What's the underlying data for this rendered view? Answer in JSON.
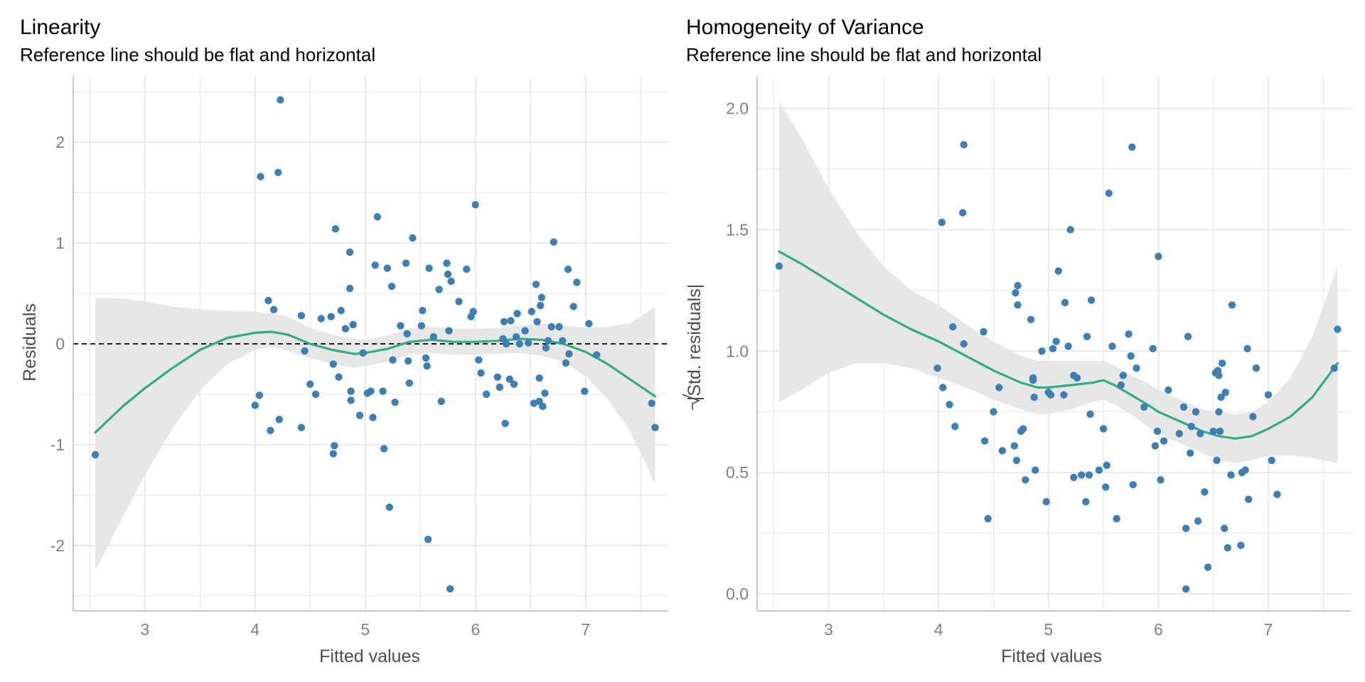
{
  "colors": {
    "points": "#3a7fb7",
    "smooth": "#2fae7f",
    "band": "#e6e6e6",
    "grid": "#e4e4e4",
    "reference": "#000000"
  },
  "chart_data": [
    {
      "type": "scatter",
      "title": "Linearity",
      "subtitle": "Reference line should be flat and horizontal",
      "xlabel": "Fitted values",
      "ylabel": "Residuals",
      "xlim": [
        2.35,
        7.75
      ],
      "ylim": [
        -2.65,
        2.65
      ],
      "xticks": [
        3,
        4,
        5,
        6,
        7
      ],
      "xtick_labels": [
        "3",
        "4",
        "5",
        "6",
        "7"
      ],
      "yticks": [
        -2,
        -1,
        0,
        1,
        2
      ],
      "ytick_labels": [
        "-2",
        "-1",
        "0",
        "1",
        "2"
      ],
      "grid": true,
      "reference_line": 0,
      "points": [
        [
          2.55,
          -1.1
        ],
        [
          4.0,
          -0.61
        ],
        [
          4.04,
          -0.51
        ],
        [
          4.05,
          1.66
        ],
        [
          4.12,
          0.43
        ],
        [
          4.14,
          -0.86
        ],
        [
          4.17,
          0.34
        ],
        [
          4.21,
          1.7
        ],
        [
          4.22,
          -0.75
        ],
        [
          4.23,
          2.42
        ],
        [
          4.42,
          0.28
        ],
        [
          4.42,
          -0.83
        ],
        [
          4.45,
          -0.07
        ],
        [
          4.5,
          -0.4
        ],
        [
          4.55,
          -0.5
        ],
        [
          4.6,
          0.25
        ],
        [
          4.69,
          0.27
        ],
        [
          4.71,
          -0.2
        ],
        [
          4.71,
          -1.09
        ],
        [
          4.72,
          -1.01
        ],
        [
          4.73,
          1.14
        ],
        [
          4.76,
          -0.33
        ],
        [
          4.78,
          0.33
        ],
        [
          4.82,
          0.15
        ],
        [
          4.86,
          0.55
        ],
        [
          4.86,
          0.91
        ],
        [
          4.87,
          -0.47
        ],
        [
          4.87,
          -0.56
        ],
        [
          4.89,
          0.19
        ],
        [
          4.95,
          -0.71
        ],
        [
          4.98,
          -0.09
        ],
        [
          5.02,
          -0.49
        ],
        [
          5.05,
          -0.47
        ],
        [
          5.07,
          -0.73
        ],
        [
          5.09,
          0.78
        ],
        [
          5.11,
          1.26
        ],
        [
          5.16,
          -0.47
        ],
        [
          5.17,
          -1.04
        ],
        [
          5.2,
          0.75
        ],
        [
          5.22,
          -1.62
        ],
        [
          5.24,
          0.57
        ],
        [
          5.25,
          -0.16
        ],
        [
          5.27,
          -0.58
        ],
        [
          5.32,
          0.18
        ],
        [
          5.37,
          0.8
        ],
        [
          5.38,
          0.1
        ],
        [
          5.39,
          -0.17
        ],
        [
          5.4,
          -0.39
        ],
        [
          5.43,
          1.05
        ],
        [
          5.51,
          0.18
        ],
        [
          5.52,
          0.33
        ],
        [
          5.55,
          -0.14
        ],
        [
          5.56,
          -0.22
        ],
        [
          5.57,
          -1.94
        ],
        [
          5.58,
          0.75
        ],
        [
          5.62,
          0.07
        ],
        [
          5.67,
          0.54
        ],
        [
          5.69,
          -0.57
        ],
        [
          5.74,
          0.8
        ],
        [
          5.75,
          0.69
        ],
        [
          5.76,
          0.13
        ],
        [
          5.77,
          -2.43
        ],
        [
          5.78,
          0.62
        ],
        [
          5.85,
          0.42
        ],
        [
          5.92,
          0.74
        ],
        [
          5.96,
          0.27
        ],
        [
          5.98,
          0.32
        ],
        [
          6.0,
          1.38
        ],
        [
          6.03,
          -0.16
        ],
        [
          6.05,
          -0.29
        ],
        [
          6.1,
          -0.5
        ],
        [
          6.2,
          -0.33
        ],
        [
          6.22,
          -0.43
        ],
        [
          6.25,
          0.05
        ],
        [
          6.26,
          0.22
        ],
        [
          6.27,
          -0.79
        ],
        [
          6.28,
          0.0
        ],
        [
          6.31,
          -0.35
        ],
        [
          6.32,
          0.23
        ],
        [
          6.35,
          -0.4
        ],
        [
          6.37,
          0.07
        ],
        [
          6.38,
          0.3
        ],
        [
          6.4,
          0.0
        ],
        [
          6.45,
          0.13
        ],
        [
          6.48,
          0.01
        ],
        [
          6.51,
          0.32
        ],
        [
          6.53,
          -0.59
        ],
        [
          6.55,
          0.59
        ],
        [
          6.56,
          0.22
        ],
        [
          6.58,
          -0.34
        ],
        [
          6.58,
          -0.57
        ],
        [
          6.59,
          0.38
        ],
        [
          6.6,
          0.46
        ],
        [
          6.61,
          -0.62
        ],
        [
          6.63,
          -0.49
        ],
        [
          6.64,
          -0.04
        ],
        [
          6.66,
          0.03
        ],
        [
          6.69,
          0.17
        ],
        [
          6.71,
          1.01
        ],
        [
          6.76,
          0.17
        ],
        [
          6.79,
          0.03
        ],
        [
          6.82,
          -0.19
        ],
        [
          6.84,
          0.74
        ],
        [
          6.85,
          -0.1
        ],
        [
          6.89,
          0.37
        ],
        [
          6.92,
          0.61
        ],
        [
          6.99,
          -0.47
        ],
        [
          7.03,
          0.2
        ],
        [
          7.1,
          -0.11
        ],
        [
          7.6,
          -0.59
        ],
        [
          7.63,
          -0.83
        ]
      ],
      "smooth": {
        "x": [
          2.55,
          2.8,
          3.0,
          3.25,
          3.5,
          3.75,
          4.0,
          4.15,
          4.3,
          4.5,
          4.7,
          4.9,
          5.0,
          5.2,
          5.4,
          5.6,
          5.8,
          6.0,
          6.2,
          6.4,
          6.6,
          6.8,
          7.0,
          7.2,
          7.4,
          7.63
        ],
        "y": [
          -0.88,
          -0.62,
          -0.44,
          -0.24,
          -0.06,
          0.06,
          0.11,
          0.12,
          0.09,
          0.0,
          -0.06,
          -0.1,
          -0.09,
          -0.05,
          0.02,
          0.04,
          0.02,
          0.02,
          0.03,
          0.05,
          0.04,
          0.0,
          -0.08,
          -0.2,
          -0.35,
          -0.52
        ],
        "lower": [
          -2.25,
          -1.72,
          -1.3,
          -0.84,
          -0.46,
          -0.2,
          -0.06,
          -0.03,
          -0.07,
          -0.14,
          -0.2,
          -0.24,
          -0.22,
          -0.18,
          -0.11,
          -0.09,
          -0.11,
          -0.11,
          -0.1,
          -0.09,
          -0.12,
          -0.18,
          -0.32,
          -0.55,
          -0.86,
          -1.39
        ],
        "upper": [
          0.46,
          0.45,
          0.42,
          0.37,
          0.34,
          0.33,
          0.32,
          0.3,
          0.27,
          0.16,
          0.09,
          0.05,
          0.04,
          0.08,
          0.15,
          0.17,
          0.15,
          0.15,
          0.16,
          0.18,
          0.2,
          0.18,
          0.16,
          0.17,
          0.2,
          0.37
        ]
      }
    },
    {
      "type": "scatter",
      "title": "Homogeneity of Variance",
      "subtitle": "Reference line should be flat and horizontal",
      "xlabel": "Fitted values",
      "ylabel": "Std. residuals",
      "xlim": [
        2.35,
        7.75
      ],
      "ylim": [
        -0.07,
        2.13
      ],
      "xticks": [
        3,
        4,
        5,
        6,
        7
      ],
      "xtick_labels": [
        "3",
        "4",
        "5",
        "6",
        "7"
      ],
      "yticks": [
        0,
        0.5,
        1,
        1.5,
        2
      ],
      "ytick_labels": [
        "0.0",
        "0.5",
        "1.0",
        "1.5",
        "2.0"
      ],
      "grid": true,
      "points": [
        [
          2.55,
          1.35
        ],
        [
          3.99,
          0.93
        ],
        [
          4.03,
          1.53
        ],
        [
          4.04,
          0.85
        ],
        [
          4.1,
          0.78
        ],
        [
          4.13,
          1.1
        ],
        [
          4.15,
          0.69
        ],
        [
          4.22,
          1.57
        ],
        [
          4.23,
          1.85
        ],
        [
          4.23,
          1.03
        ],
        [
          4.41,
          1.08
        ],
        [
          4.42,
          0.63
        ],
        [
          4.45,
          0.31
        ],
        [
          4.5,
          0.75
        ],
        [
          4.55,
          0.85
        ],
        [
          4.58,
          0.59
        ],
        [
          4.69,
          0.61
        ],
        [
          4.7,
          1.24
        ],
        [
          4.71,
          0.55
        ],
        [
          4.72,
          1.19
        ],
        [
          4.72,
          1.27
        ],
        [
          4.75,
          0.67
        ],
        [
          4.77,
          0.68
        ],
        [
          4.79,
          0.47
        ],
        [
          4.84,
          1.13
        ],
        [
          4.86,
          0.88
        ],
        [
          4.86,
          0.89
        ],
        [
          4.87,
          0.81
        ],
        [
          4.88,
          0.51
        ],
        [
          4.94,
          1.0
        ],
        [
          4.98,
          0.38
        ],
        [
          5.0,
          0.83
        ],
        [
          5.02,
          0.82
        ],
        [
          5.04,
          1.01
        ],
        [
          5.07,
          1.04
        ],
        [
          5.09,
          1.33
        ],
        [
          5.14,
          0.82
        ],
        [
          5.15,
          1.2
        ],
        [
          5.18,
          1.02
        ],
        [
          5.2,
          1.5
        ],
        [
          5.23,
          0.48
        ],
        [
          5.23,
          0.9
        ],
        [
          5.26,
          0.89
        ],
        [
          5.3,
          0.49
        ],
        [
          5.34,
          0.38
        ],
        [
          5.35,
          1.06
        ],
        [
          5.37,
          0.49
        ],
        [
          5.38,
          0.74
        ],
        [
          5.39,
          1.21
        ],
        [
          5.46,
          0.51
        ],
        [
          5.5,
          0.68
        ],
        [
          5.52,
          0.44
        ],
        [
          5.53,
          0.53
        ],
        [
          5.55,
          1.65
        ],
        [
          5.58,
          1.02
        ],
        [
          5.62,
          0.31
        ],
        [
          5.66,
          0.86
        ],
        [
          5.68,
          0.9
        ],
        [
          5.73,
          1.07
        ],
        [
          5.75,
          0.98
        ],
        [
          5.76,
          1.84
        ],
        [
          5.77,
          0.45
        ],
        [
          5.8,
          0.93
        ],
        [
          5.87,
          0.77
        ],
        [
          5.95,
          1.01
        ],
        [
          5.97,
          0.61
        ],
        [
          5.99,
          0.67
        ],
        [
          6.0,
          1.39
        ],
        [
          6.02,
          0.47
        ],
        [
          6.05,
          0.63
        ],
        [
          6.09,
          0.84
        ],
        [
          6.19,
          0.66
        ],
        [
          6.23,
          0.77
        ],
        [
          6.25,
          0.27
        ],
        [
          6.25,
          0.02
        ],
        [
          6.27,
          1.06
        ],
        [
          6.29,
          0.58
        ],
        [
          6.3,
          0.69
        ],
        [
          6.34,
          0.75
        ],
        [
          6.36,
          0.3
        ],
        [
          6.38,
          0.66
        ],
        [
          6.42,
          0.42
        ],
        [
          6.45,
          0.11
        ],
        [
          6.5,
          0.67
        ],
        [
          6.52,
          0.91
        ],
        [
          6.53,
          0.55
        ],
        [
          6.54,
          0.92
        ],
        [
          6.55,
          0.75
        ],
        [
          6.55,
          0.9
        ],
        [
          6.56,
          0.67
        ],
        [
          6.57,
          0.81
        ],
        [
          6.58,
          0.95
        ],
        [
          6.6,
          0.27
        ],
        [
          6.61,
          0.83
        ],
        [
          6.63,
          0.19
        ],
        [
          6.66,
          0.49
        ],
        [
          6.67,
          1.19
        ],
        [
          6.75,
          0.2
        ],
        [
          6.76,
          0.5
        ],
        [
          6.79,
          0.51
        ],
        [
          6.81,
          1.01
        ],
        [
          6.82,
          0.39
        ],
        [
          6.86,
          0.73
        ],
        [
          6.89,
          0.93
        ],
        [
          7.0,
          0.82
        ],
        [
          7.03,
          0.55
        ],
        [
          7.08,
          0.41
        ],
        [
          7.6,
          0.93
        ],
        [
          7.63,
          1.09
        ]
      ],
      "smooth": {
        "x": [
          2.55,
          2.75,
          3.0,
          3.25,
          3.5,
          3.75,
          4.0,
          4.25,
          4.5,
          4.75,
          4.9,
          5.0,
          5.2,
          5.4,
          5.5,
          5.6,
          5.75,
          5.9,
          6.0,
          6.2,
          6.4,
          6.55,
          6.7,
          6.85,
          7.0,
          7.2,
          7.4,
          7.63
        ],
        "y": [
          1.41,
          1.36,
          1.29,
          1.22,
          1.15,
          1.09,
          1.04,
          0.98,
          0.92,
          0.87,
          0.85,
          0.85,
          0.86,
          0.87,
          0.88,
          0.86,
          0.82,
          0.78,
          0.75,
          0.71,
          0.67,
          0.65,
          0.64,
          0.65,
          0.68,
          0.73,
          0.81,
          0.95
        ],
        "lower": [
          0.79,
          0.84,
          0.91,
          0.95,
          0.95,
          0.93,
          0.89,
          0.85,
          0.8,
          0.76,
          0.74,
          0.74,
          0.76,
          0.79,
          0.8,
          0.78,
          0.74,
          0.69,
          0.66,
          0.62,
          0.58,
          0.55,
          0.54,
          0.55,
          0.57,
          0.57,
          0.56,
          0.54
        ],
        "upper": [
          2.03,
          1.88,
          1.67,
          1.49,
          1.35,
          1.25,
          1.19,
          1.11,
          1.04,
          0.98,
          0.96,
          0.96,
          0.96,
          0.96,
          0.96,
          0.94,
          0.9,
          0.87,
          0.84,
          0.8,
          0.76,
          0.75,
          0.74,
          0.75,
          0.79,
          0.89,
          1.06,
          1.35
        ]
      }
    }
  ]
}
